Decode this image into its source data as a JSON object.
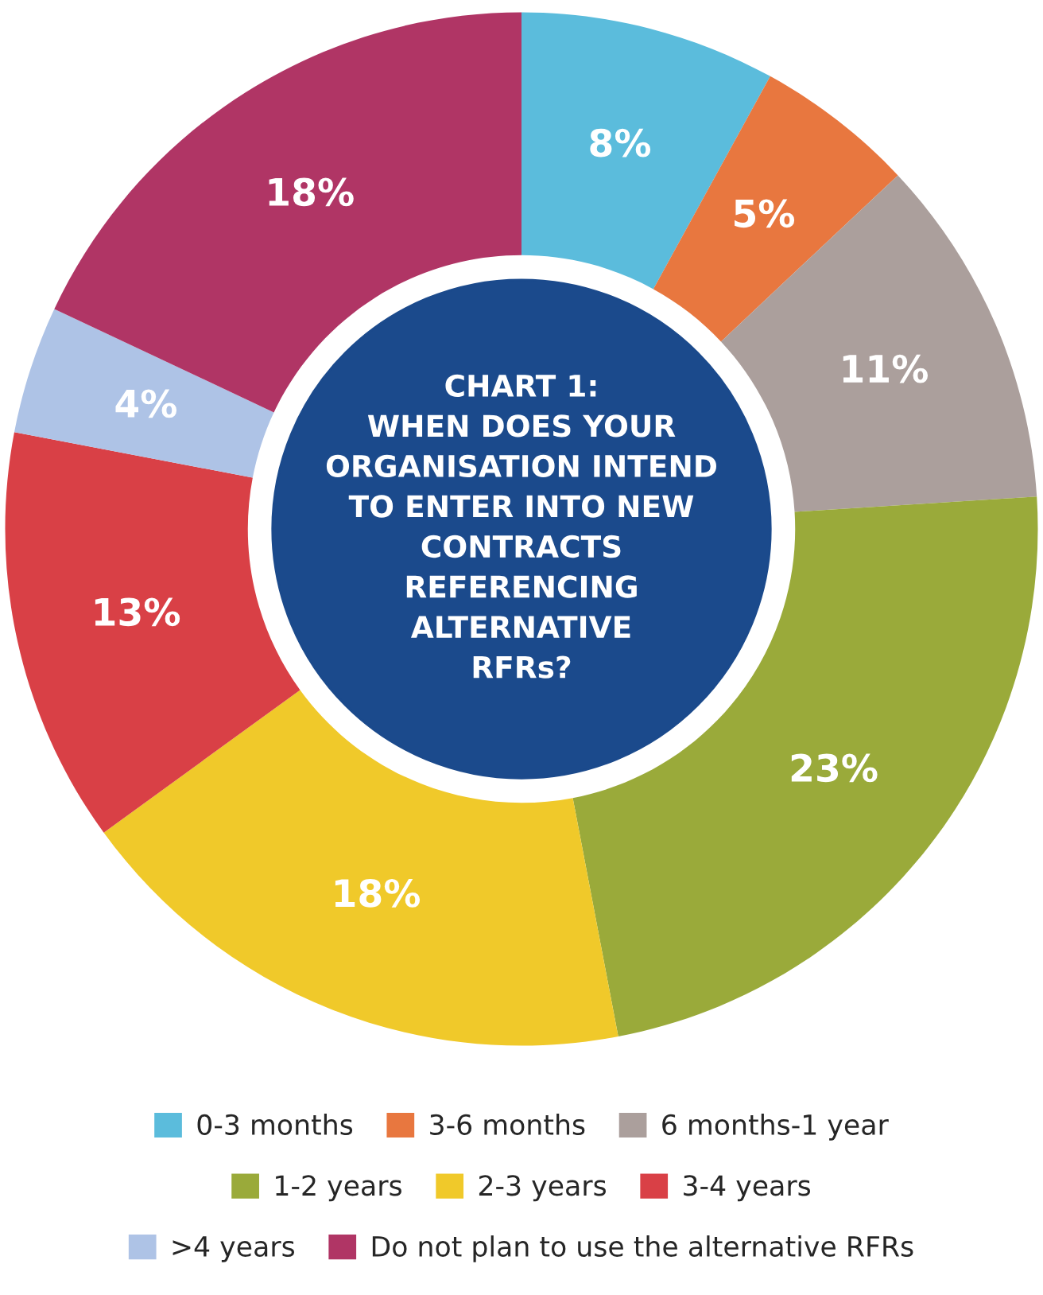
{
  "chart_data": {
    "type": "donut",
    "title": "CHART 1:\nWHEN DOES YOUR\nORGANISATION INTEND\nTO ENTER INTO NEW\nCONTRACTS\nREFERENCING\nALTERNATIVE\nRFRs?",
    "categories": [
      "0-3 months",
      "3-6 months",
      "6 months-1 year",
      "1-2 years",
      "2-3 years",
      "3-4 years",
      ">4 years",
      "Do not plan to use the alternative RFRs"
    ],
    "values": [
      8,
      5,
      11,
      23,
      18,
      13,
      4,
      18
    ],
    "value_labels": [
      "8%",
      "5%",
      "11%",
      "23%",
      "18%",
      "13%",
      "4%",
      "18%"
    ],
    "colors": [
      "#5bbcdc",
      "#e8773f",
      "#ab9f9c",
      "#9aaa3a",
      "#f0c92a",
      "#d94046",
      "#aec3e6",
      "#b03565"
    ],
    "legend": "bottom"
  }
}
